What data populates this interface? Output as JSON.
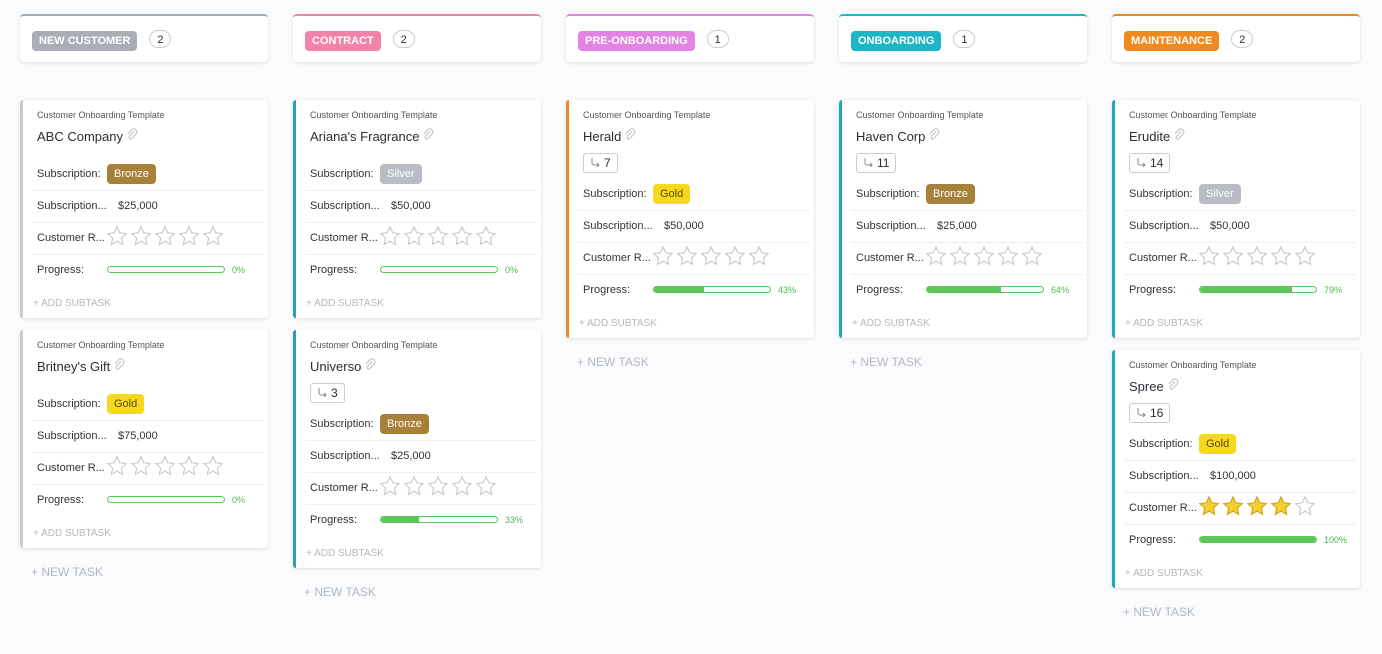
{
  "board": {
    "template": "Customer Onboarding Template",
    "field_labels": [
      "Subscription:",
      "Subscription...",
      "Customer R...",
      "Progress:"
    ],
    "add_subtask": "+ ADD SUBTASK",
    "new_task": "+ NEW TASK",
    "badge_colors": {
      "Bronze": "#a7803a",
      "Silver": "#b9bdc3",
      "Gold": "#f6d81e"
    },
    "columns": [
      {
        "name": "NEW CUSTOMER",
        "color": "#a9aeb6",
        "count": "2",
        "cards": [
          {
            "name": "ABC Company",
            "subscription": "Bronze",
            "amount": "$25,000",
            "rating": 0,
            "progress": {
              "value": 0,
              "label": "0%"
            },
            "stripe": "#c8ccd2"
          },
          {
            "name": "Britney's Gift",
            "subscription": "Gold",
            "amount": "$75,000",
            "rating": 0,
            "progress": {
              "value": 0,
              "label": "0%"
            },
            "stripe": "#c8ccd2"
          }
        ]
      },
      {
        "name": "CONTRACT",
        "color": "#f282aa",
        "count": "2",
        "cards": [
          {
            "name": "Ariana's Fragrance",
            "subscription": "Silver",
            "amount": "$50,000",
            "rating": 0,
            "progress": {
              "value": 0,
              "label": "0%"
            },
            "stripe": "#2a9fc4"
          },
          {
            "name": "Universo",
            "subtasks": "3",
            "subscription": "Bronze",
            "amount": "$25,000",
            "rating": 0,
            "progress": {
              "value": 33,
              "label": "33%"
            },
            "stripe": "#2a9fc4"
          }
        ]
      },
      {
        "name": "PRE-ONBOARDING",
        "color": "#e383e3",
        "count": "1",
        "cards": [
          {
            "name": "Herald",
            "subtasks": "7",
            "subscription": "Gold",
            "amount": "$50,000",
            "rating": 0,
            "progress": {
              "value": 43,
              "label": "43%"
            },
            "stripe": "#f0882a"
          }
        ]
      },
      {
        "name": "ONBOARDING",
        "color": "#1db6c6",
        "count": "1",
        "cards": [
          {
            "name": "Haven Corp",
            "subtasks": "11",
            "subscription": "Bronze",
            "amount": "$25,000",
            "rating": 0,
            "progress": {
              "value": 64,
              "label": "64%"
            },
            "stripe": "#1fa9c0"
          }
        ]
      },
      {
        "name": "MAINTENANCE",
        "color": "#f08a1e",
        "count": "2",
        "cards": [
          {
            "name": "Erudite",
            "subtasks": "14",
            "subscription": "Silver",
            "amount": "$50,000",
            "rating": 0,
            "progress": {
              "value": 79,
              "label": "79%"
            },
            "stripe": "#1fa9c0"
          },
          {
            "name": "Spree",
            "subtasks": "16",
            "subscription": "Gold",
            "amount": "$100,000",
            "rating": 4,
            "progress": {
              "value": 100,
              "label": "100%"
            },
            "stripe": "#1fa9c0"
          }
        ]
      }
    ]
  }
}
